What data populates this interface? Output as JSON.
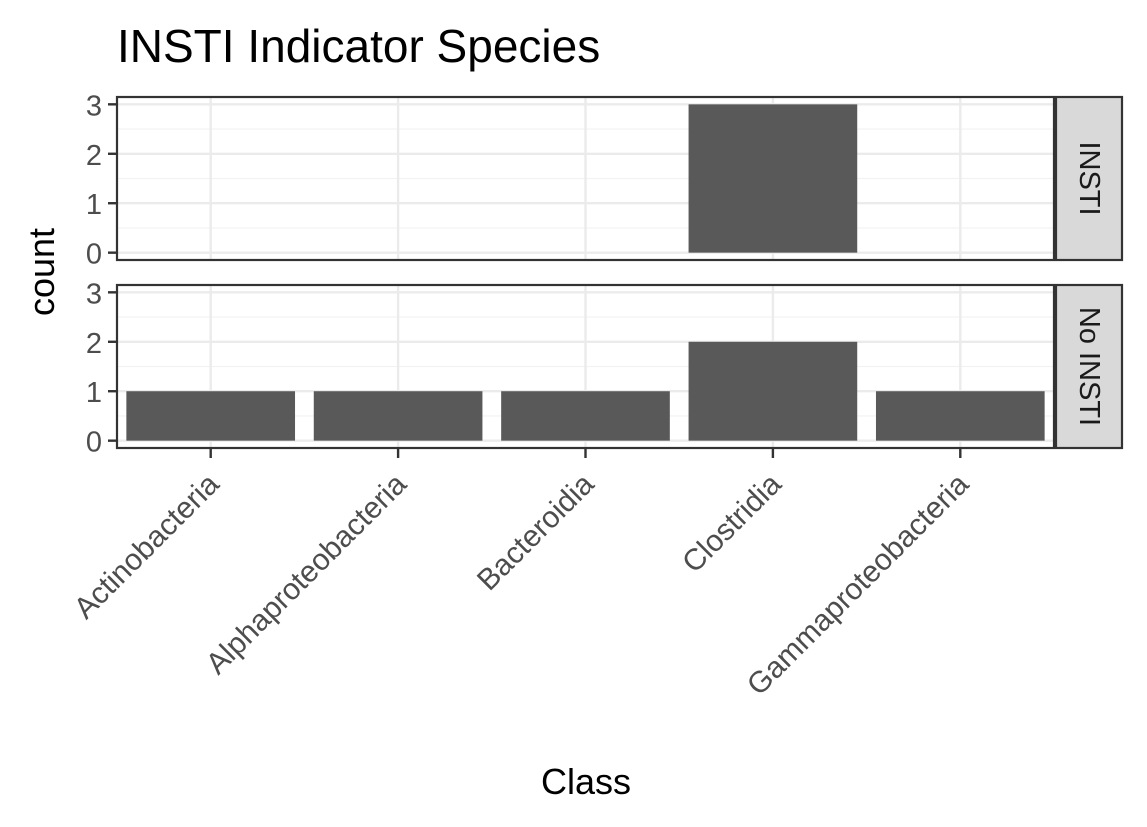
{
  "chart_data": {
    "type": "bar",
    "title": "INSTI Indicator Species",
    "xlabel": "Class",
    "ylabel": "count",
    "categories": [
      "Actinobacteria",
      "Alphaproteobacteria",
      "Bacteroidia",
      "Clostridia",
      "Gammaproteobacteria"
    ],
    "ylim": [
      0,
      3
    ],
    "yticks": [
      "0",
      "1",
      "2",
      "3"
    ],
    "grid": true,
    "bar_color": "#595959",
    "facets": [
      {
        "label": "INSTI",
        "values": [
          0,
          0,
          0,
          3,
          0
        ]
      },
      {
        "label": "No INSTI",
        "values": [
          1,
          1,
          1,
          2,
          1
        ]
      }
    ]
  }
}
